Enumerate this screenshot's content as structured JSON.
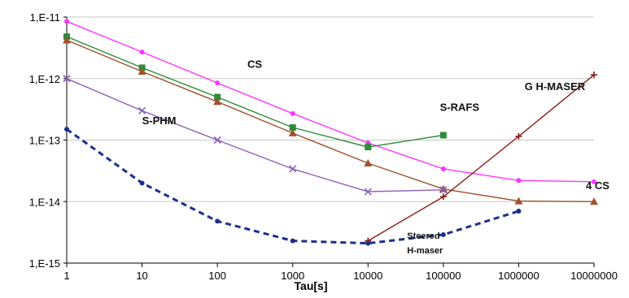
{
  "chart_data": {
    "type": "line",
    "title": "",
    "xlabel": "Tau[s]",
    "ylabel": "",
    "x_scale": "log",
    "y_scale": "log",
    "xlim": [
      1,
      10000000
    ],
    "ylim": [
      1e-15,
      1e-11
    ],
    "grid": "horizontal",
    "legend": "none",
    "x_ticks": [
      {
        "value": 1,
        "label": "1"
      },
      {
        "value": 10,
        "label": "10"
      },
      {
        "value": 100,
        "label": "100"
      },
      {
        "value": 1000,
        "label": "1000"
      },
      {
        "value": 10000,
        "label": "10000"
      },
      {
        "value": 100000,
        "label": "100000"
      },
      {
        "value": 1000000,
        "label": "1000000"
      },
      {
        "value": 10000000,
        "label": "10000000"
      }
    ],
    "y_ticks": [
      {
        "value": 1e-11,
        "label": "1,E-11"
      },
      {
        "value": 1e-12,
        "label": "1,E-12"
      },
      {
        "value": 1e-13,
        "label": "1,E-13"
      },
      {
        "value": 1e-14,
        "label": "1,E-14"
      },
      {
        "value": 1e-15,
        "label": "1,E-15"
      }
    ],
    "series": [
      {
        "name": "CS",
        "color": "#ff33ff",
        "marker": "circle",
        "dashed": false,
        "x": [
          1,
          10,
          100,
          1000,
          10000,
          100000,
          1000000,
          10000000
        ],
        "y": [
          8.5e-12,
          2.7e-12,
          8.5e-13,
          2.7e-13,
          9e-14,
          3.4e-14,
          2.2e-14,
          2.1e-14
        ]
      },
      {
        "name": "S-RAFS",
        "color": "#2e8b3a",
        "marker": "square",
        "dashed": false,
        "x": [
          1,
          10,
          100,
          1000,
          10000,
          100000
        ],
        "y": [
          4.8e-12,
          1.5e-12,
          5e-13,
          1.6e-13,
          7.7e-14,
          1.2e-13
        ]
      },
      {
        "name": "4 CS",
        "color": "#a0522d",
        "marker": "triangle",
        "dashed": false,
        "x": [
          1,
          10,
          100,
          1000,
          10000,
          100000,
          1000000,
          10000000
        ],
        "y": [
          4.2e-12,
          1.3e-12,
          4.2e-13,
          1.3e-13,
          4.2e-14,
          1.6e-14,
          1.02e-14,
          1e-14
        ]
      },
      {
        "name": "S-PHM",
        "color": "#8a5fb8",
        "marker": "x",
        "dashed": false,
        "x": [
          1,
          10,
          100,
          1000,
          10000,
          100000
        ],
        "y": [
          1e-12,
          3e-13,
          1e-13,
          3.4e-14,
          1.45e-14,
          1.55e-14
        ]
      },
      {
        "name": "G H-MASER",
        "color": "#8b1a1a",
        "marker": "plus",
        "dashed": false,
        "x": [
          10000,
          100000,
          1000000,
          10000000
        ],
        "y": [
          2.3e-15,
          1.2e-14,
          1.15e-13,
          1.15e-12
        ]
      },
      {
        "name": "Steered H-maser",
        "color": "#1c2f8c",
        "marker": "circle",
        "dashed": true,
        "x": [
          1,
          10,
          100,
          1000,
          10000,
          100000,
          1000000
        ],
        "y": [
          1.5e-13,
          2e-14,
          4.8e-15,
          2.3e-15,
          2.1e-15,
          2.9e-15,
          7e-15
        ]
      }
    ],
    "annotations": [
      {
        "text": "CS",
        "series": "CS",
        "x": 250,
        "y": 1.5e-12
      },
      {
        "text": "S-RAFS",
        "series": "S-RAFS",
        "x": 90000,
        "y": 3e-13
      },
      {
        "text": "4 CS",
        "series": "4 CS",
        "x": 16000000.0,
        "y": 1.6e-14
      },
      {
        "text": "S-PHM",
        "series": "S-PHM",
        "x": 10,
        "y": 1.8e-13
      },
      {
        "text": "G H-MASER",
        "series": "G H-MASER",
        "x": 1200000,
        "y": 6.5e-13
      },
      {
        "text": "Steered",
        "series": "Steered H-maser",
        "x": 33000,
        "y": 2.5e-15
      },
      {
        "text": "H-maser",
        "series": "Steered H-maser",
        "x": 33000,
        "y": 1.45e-15
      }
    ]
  }
}
